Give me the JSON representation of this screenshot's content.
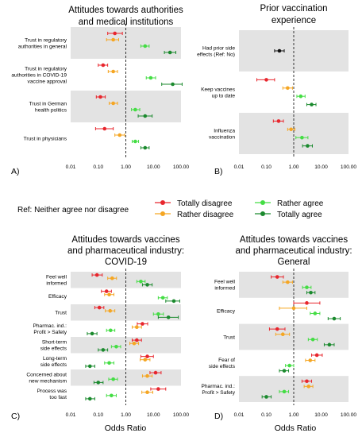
{
  "legend": {
    "ref_label": "Ref: Neither agree nor disagree",
    "items": [
      {
        "label": "Totally disagree",
        "color": "#e8262d"
      },
      {
        "label": "Rather disagree",
        "color": "#f5a623"
      },
      {
        "label": "Rather agree",
        "color": "#44dd44"
      },
      {
        "label": "Totally agree",
        "color": "#1b8a2e"
      }
    ]
  },
  "xlabels": {
    "c": "Odds Ratio",
    "d": "Odds Ratio"
  },
  "chart_data": [
    {
      "id": "A",
      "panel_label": "A)",
      "type": "scatter",
      "title": [
        "Attitudes towards authorities",
        "and medical institutions"
      ],
      "xscale": "log",
      "xlim": [
        0.01,
        100
      ],
      "ref_line": 1,
      "xticks": [
        "0.01",
        "0.10",
        "1.00",
        "10.00",
        "100.00"
      ],
      "groups": [
        {
          "label": [
            "Trust in regulatory",
            "authorities in general"
          ],
          "shaded": true,
          "points": [
            {
              "category": "Totally disagree",
              "or": 0.4,
              "lo": 0.22,
              "hi": 0.75
            },
            {
              "category": "Rather disagree",
              "or": 0.35,
              "lo": 0.2,
              "hi": 0.55
            },
            {
              "category": "Rather agree",
              "or": 5,
              "lo": 3.5,
              "hi": 7
            },
            {
              "category": "Totally agree",
              "or": 40,
              "lo": 25,
              "hi": 65
            }
          ]
        },
        {
          "label": [
            "Trust in regulatory",
            "authorities in COVID-19",
            "vaccine approval"
          ],
          "shaded": false,
          "points": [
            {
              "category": "Totally disagree",
              "or": 0.15,
              "lo": 0.1,
              "hi": 0.22
            },
            {
              "category": "Rather disagree",
              "or": 0.35,
              "lo": 0.23,
              "hi": 0.5
            },
            {
              "category": "Rather agree",
              "or": 8,
              "lo": 5.5,
              "hi": 12
            },
            {
              "category": "Totally agree",
              "or": 50,
              "lo": 20,
              "hi": 110
            }
          ]
        },
        {
          "label": [
            "Trust in German",
            "health politics"
          ],
          "shaded": true,
          "points": [
            {
              "category": "Totally disagree",
              "or": 0.12,
              "lo": 0.085,
              "hi": 0.18
            },
            {
              "category": "Rather disagree",
              "or": 0.35,
              "lo": 0.25,
              "hi": 0.5
            },
            {
              "category": "Rather agree",
              "or": 2.2,
              "lo": 1.6,
              "hi": 3.2
            },
            {
              "category": "Totally agree",
              "or": 5,
              "lo": 2.8,
              "hi": 9
            }
          ]
        },
        {
          "label": [
            "Trust in physicians"
          ],
          "shaded": false,
          "points": [
            {
              "category": "Totally disagree",
              "or": 0.17,
              "lo": 0.08,
              "hi": 0.35
            },
            {
              "category": "Rather disagree",
              "or": 0.6,
              "lo": 0.4,
              "hi": 0.9
            },
            {
              "category": "Rather agree",
              "or": 2.2,
              "lo": 1.7,
              "hi": 2.9
            },
            {
              "category": "Totally agree",
              "or": 5,
              "lo": 3.5,
              "hi": 7
            }
          ]
        }
      ]
    },
    {
      "id": "B",
      "panel_label": "B)",
      "type": "scatter",
      "title": [
        "Prior vaccination",
        "experience"
      ],
      "xscale": "log",
      "xlim": [
        0.01,
        100
      ],
      "ref_line": 1,
      "xticks": [
        "0.01",
        "0.10",
        "1.00",
        "10.00",
        "100.00"
      ],
      "groups": [
        {
          "label": [
            "Had prior side",
            "effects (Ref: No)"
          ],
          "shaded": true,
          "points": [
            {
              "category": "Yes",
              "color": "#111111",
              "or": 0.3,
              "lo": 0.2,
              "hi": 0.45
            }
          ]
        },
        {
          "label": [
            "Keep vaccines",
            "up to date"
          ],
          "shaded": false,
          "points": [
            {
              "category": "Totally disagree",
              "or": 0.1,
              "lo": 0.045,
              "hi": 0.2
            },
            {
              "category": "Rather disagree",
              "or": 0.6,
              "lo": 0.4,
              "hi": 0.9
            },
            {
              "category": "Rather agree",
              "or": 1.8,
              "lo": 1.3,
              "hi": 2.6
            },
            {
              "category": "Totally agree",
              "or": 4.5,
              "lo": 3,
              "hi": 6.5
            }
          ]
        },
        {
          "label": [
            "Influenza",
            "vaccination"
          ],
          "shaded": true,
          "points": [
            {
              "category": "Totally disagree",
              "or": 0.28,
              "lo": 0.18,
              "hi": 0.42
            },
            {
              "category": "Rather disagree",
              "or": 0.8,
              "lo": 0.6,
              "hi": 1.1
            },
            {
              "category": "Rather agree",
              "or": 2,
              "lo": 1.2,
              "hi": 3.3
            },
            {
              "category": "Totally agree",
              "or": 3.2,
              "lo": 2.1,
              "hi": 4.8
            }
          ]
        }
      ]
    },
    {
      "id": "C",
      "panel_label": "C)",
      "type": "scatter",
      "title": [
        "Attitudes towards vaccines",
        "and pharmaceutical industry:",
        "COVID-19"
      ],
      "xscale": "log",
      "xlim": [
        0.01,
        100
      ],
      "ref_line": 1,
      "xticks": [
        "0.01",
        "0.10",
        "1.00",
        "10.00",
        "100.00"
      ],
      "groups": [
        {
          "label": [
            "Feel well",
            "informed"
          ],
          "shaded": true,
          "points": [
            {
              "category": "Totally disagree",
              "or": 0.09,
              "lo": 0.06,
              "hi": 0.14
            },
            {
              "category": "Rather disagree",
              "or": 0.32,
              "lo": 0.22,
              "hi": 0.46
            },
            {
              "category": "Rather agree",
              "or": 3.5,
              "lo": 2.5,
              "hi": 5
            },
            {
              "category": "Totally agree",
              "or": 6,
              "lo": 4,
              "hi": 9
            }
          ]
        },
        {
          "label": [
            "Efficacy"
          ],
          "shaded": false,
          "points": [
            {
              "category": "Totally disagree",
              "or": 0.2,
              "lo": 0.13,
              "hi": 0.3
            },
            {
              "category": "Rather disagree",
              "or": 0.25,
              "lo": 0.17,
              "hi": 0.37
            },
            {
              "category": "Rather agree",
              "or": 22,
              "lo": 15,
              "hi": 32
            },
            {
              "category": "Totally agree",
              "or": 55,
              "lo": 28,
              "hi": 90
            }
          ]
        },
        {
          "label": [
            "Trust"
          ],
          "shaded": true,
          "points": [
            {
              "category": "Totally disagree",
              "or": 0.11,
              "lo": 0.075,
              "hi": 0.16
            },
            {
              "category": "Rather disagree",
              "or": 0.27,
              "lo": 0.18,
              "hi": 0.4
            },
            {
              "category": "Rather agree",
              "or": 15,
              "lo": 10,
              "hi": 23
            },
            {
              "category": "Totally agree",
              "or": 35,
              "lo": 15,
              "hi": 80
            }
          ]
        },
        {
          "label": [
            "Pharmac. ind.:",
            "Profit > Safety"
          ],
          "shaded": false,
          "points": [
            {
              "category": "Totally disagree",
              "or": 4,
              "lo": 2.6,
              "hi": 6.2
            },
            {
              "category": "Rather disagree",
              "or": 2.5,
              "lo": 1.7,
              "hi": 3.7
            },
            {
              "category": "Rather agree",
              "or": 0.28,
              "lo": 0.2,
              "hi": 0.4
            },
            {
              "category": "Totally agree",
              "or": 0.06,
              "lo": 0.04,
              "hi": 0.09
            }
          ]
        },
        {
          "label": [
            "Short-term",
            "side effects"
          ],
          "shaded": true,
          "points": [
            {
              "category": "Totally disagree",
              "or": 2.5,
              "lo": 1.7,
              "hi": 3.7
            },
            {
              "category": "Rather disagree",
              "or": 2,
              "lo": 1.4,
              "hi": 2.9
            },
            {
              "category": "Rather agree",
              "or": 0.45,
              "lo": 0.3,
              "hi": 0.65
            },
            {
              "category": "Totally agree",
              "or": 0.15,
              "lo": 0.1,
              "hi": 0.22
            }
          ]
        },
        {
          "label": [
            "Long-term",
            "side effects"
          ],
          "shaded": false,
          "points": [
            {
              "category": "Totally disagree",
              "or": 6,
              "lo": 3.5,
              "hi": 10
            },
            {
              "category": "Rather disagree",
              "or": 5,
              "lo": 3.3,
              "hi": 7.5
            },
            {
              "category": "Rather agree",
              "or": 0.25,
              "lo": 0.17,
              "hi": 0.37
            },
            {
              "category": "Totally agree",
              "or": 0.05,
              "lo": 0.035,
              "hi": 0.075
            }
          ]
        },
        {
          "label": [
            "Concerned about",
            "new mechanism"
          ],
          "shaded": true,
          "points": [
            {
              "category": "Totally disagree",
              "or": 12,
              "lo": 7.5,
              "hi": 19
            },
            {
              "category": "Rather disagree",
              "or": 6,
              "lo": 4,
              "hi": 9
            },
            {
              "category": "Rather agree",
              "or": 0.35,
              "lo": 0.24,
              "hi": 0.5
            },
            {
              "category": "Totally agree",
              "or": 0.1,
              "lo": 0.07,
              "hi": 0.15
            }
          ]
        },
        {
          "label": [
            "Process was",
            "too fast"
          ],
          "shaded": false,
          "points": [
            {
              "category": "Totally disagree",
              "or": 15,
              "lo": 8,
              "hi": 28
            },
            {
              "category": "Rather disagree",
              "or": 6,
              "lo": 3.8,
              "hi": 9.5
            },
            {
              "category": "Rather agree",
              "or": 0.3,
              "lo": 0.2,
              "hi": 0.45
            },
            {
              "category": "Totally agree",
              "or": 0.05,
              "lo": 0.035,
              "hi": 0.075
            }
          ]
        }
      ]
    },
    {
      "id": "D",
      "panel_label": "D)",
      "type": "scatter",
      "title": [
        "Attitudes towards vaccines",
        "and pharmaceutical industry:",
        "General"
      ],
      "xscale": "log",
      "xlim": [
        0.01,
        100
      ],
      "ref_line": 1,
      "xticks": [
        "0.01",
        "0.10",
        "1.00",
        "10.00",
        "100.00"
      ],
      "groups": [
        {
          "label": [
            "Feel well",
            "informed"
          ],
          "shaded": true,
          "points": [
            {
              "category": "Totally disagree",
              "or": 0.25,
              "lo": 0.15,
              "hi": 0.42
            },
            {
              "category": "Rather disagree",
              "or": 0.6,
              "lo": 0.4,
              "hi": 0.9
            },
            {
              "category": "Rather agree",
              "or": 3,
              "lo": 2.1,
              "hi": 4.3
            },
            {
              "category": "Totally agree",
              "or": 4.2,
              "lo": 3,
              "hi": 6
            }
          ]
        },
        {
          "label": [
            "Efficacy"
          ],
          "shaded": false,
          "points": [
            {
              "category": "Totally disagree",
              "or": 3,
              "lo": 1,
              "hi": 9
            },
            {
              "category": "Rather disagree",
              "or": 1,
              "lo": 0.3,
              "hi": 3
            },
            {
              "category": "Rather agree",
              "or": 6,
              "lo": 4,
              "hi": 9
            },
            {
              "category": "Totally agree",
              "or": 30,
              "lo": 18,
              "hi": 50
            }
          ]
        },
        {
          "label": [
            "Trust"
          ],
          "shaded": true,
          "points": [
            {
              "category": "Totally disagree",
              "or": 0.25,
              "lo": 0.13,
              "hi": 0.48
            },
            {
              "category": "Rather disagree",
              "or": 0.4,
              "lo": 0.22,
              "hi": 0.7
            },
            {
              "category": "Rather agree",
              "or": 5,
              "lo": 3.4,
              "hi": 7.3
            },
            {
              "category": "Totally agree",
              "or": 20,
              "lo": 13,
              "hi": 30
            }
          ]
        },
        {
          "label": [
            "Fear of",
            "side effects"
          ],
          "shaded": false,
          "points": [
            {
              "category": "Totally disagree",
              "or": 7,
              "lo": 4.5,
              "hi": 11
            },
            {
              "category": "Rather disagree",
              "or": 4,
              "lo": 2.7,
              "hi": 6
            },
            {
              "category": "Rather agree",
              "or": 0.7,
              "lo": 0.5,
              "hi": 1
            },
            {
              "category": "Totally agree",
              "or": 0.45,
              "lo": 0.3,
              "hi": 0.65
            }
          ]
        },
        {
          "label": [
            "Pharmac. ind.:",
            "Profit > Safety"
          ],
          "shaded": true,
          "points": [
            {
              "category": "Totally disagree",
              "or": 3,
              "lo": 2,
              "hi": 4.5
            },
            {
              "category": "Rather disagree",
              "or": 3.5,
              "lo": 2.4,
              "hi": 5
            },
            {
              "category": "Rather agree",
              "or": 0.45,
              "lo": 0.3,
              "hi": 0.65
            },
            {
              "category": "Totally agree",
              "or": 0.1,
              "lo": 0.07,
              "hi": 0.15
            }
          ]
        }
      ]
    }
  ]
}
